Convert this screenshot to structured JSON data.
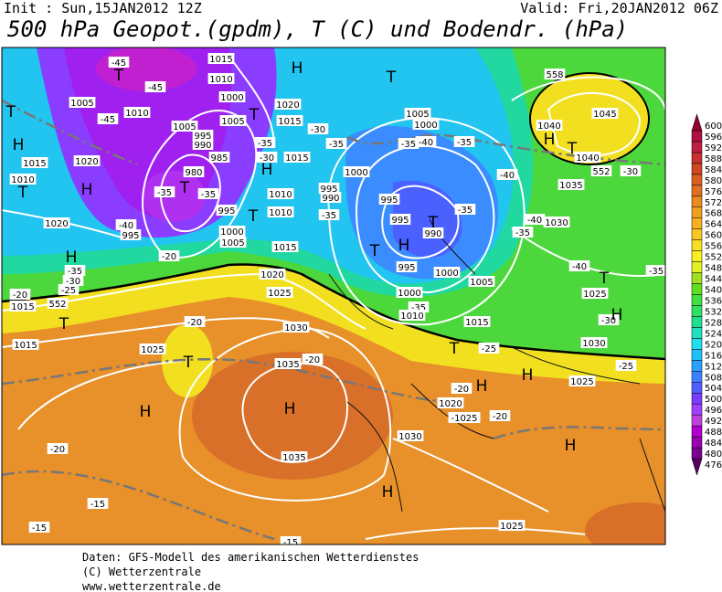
{
  "header": {
    "init": "Init : Sun,15JAN2012 12Z",
    "valid": "Valid: Fri,20JAN2012 06Z",
    "title": "500 hPa Geopot.(gpdm), T (C) und Bodendr. (hPa)"
  },
  "map": {
    "labels": [
      "-45",
      "T",
      "1005",
      "1010",
      "-45",
      "-45",
      "T",
      "H",
      "1015",
      "1020",
      "1010",
      "T",
      "H",
      "1020",
      "H",
      "-35",
      "-30",
      "-25",
      "1015",
      "T",
      "1015",
      "-20",
      "-20",
      "-40",
      "995",
      "980",
      "T",
      "-35",
      "-35",
      "995",
      "1000",
      "1005",
      "1005",
      "995",
      "990",
      "985",
      "1015",
      "1010",
      "1000",
      "T",
      "1005",
      "-35",
      "H",
      "-30",
      "1010",
      "1010",
      "T",
      "H",
      "1020",
      "1015",
      "-30",
      "1015",
      "-35",
      "1000",
      "995",
      "990",
      "-35",
      "1015",
      "1020",
      "1025",
      "T",
      "1005",
      "1000",
      "-35",
      "-40",
      "-35",
      "995",
      "995",
      "T",
      "990",
      "-35",
      "H",
      "T",
      "995",
      "1000",
      "1005",
      "1000",
      "-35",
      "1010",
      "1015",
      "-40",
      "-40",
      "1030",
      "-35",
      "1035",
      "558",
      "1040",
      "1045",
      "H",
      "T",
      "1040",
      "552",
      "-30",
      "-40",
      "T",
      "-35",
      "1025",
      "-30",
      "H",
      "1030",
      "-25",
      "1025",
      "H",
      "H",
      "T",
      "-25",
      "-20",
      "1020",
      "-1025",
      "-20",
      "1030",
      "H",
      "H",
      "1025",
      "-20",
      "T",
      "1030",
      "1025",
      "-20",
      "1035",
      "H",
      "1035",
      "H",
      "-20",
      "-15",
      "-15",
      "-15",
      "552"
    ]
  },
  "legend": {
    "values": [
      476,
      480,
      484,
      488,
      492,
      496,
      500,
      504,
      508,
      512,
      516,
      520,
      524,
      528,
      532,
      536,
      540,
      544,
      548,
      552,
      556,
      560,
      564,
      568,
      572,
      576,
      580,
      584,
      588,
      592,
      596,
      600
    ],
    "colors": [
      "#5a0060",
      "#7a0090",
      "#9a00b0",
      "#b000d0",
      "#c040e0",
      "#a040ff",
      "#7a3cff",
      "#5060ff",
      "#3c80ff",
      "#2aa0ff",
      "#20c0ff",
      "#20e0f0",
      "#20e0c0",
      "#20e090",
      "#30e060",
      "#40e040",
      "#60e020",
      "#a0e020",
      "#e0f020",
      "#f8f020",
      "#f8e020",
      "#f8c820",
      "#f8b020",
      "#f0a020",
      "#e88a20",
      "#e07020",
      "#d86020",
      "#d04820",
      "#c83030",
      "#c02040",
      "#b01040",
      "#900030"
    ]
  },
  "footer": [
    "Daten: GFS-Modell des amerikanischen Wetterdienstes",
    "(C) Wetterzentrale",
    "www.wetterzentrale.de"
  ]
}
